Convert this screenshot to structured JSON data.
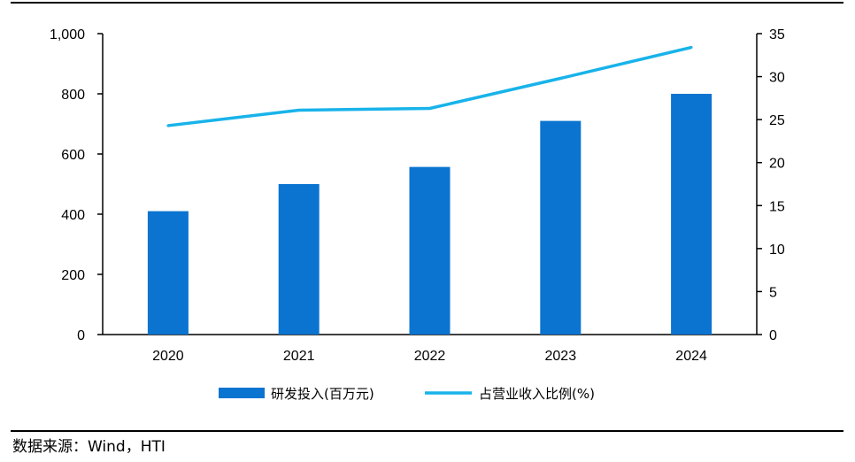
{
  "chart_data": {
    "type": "bar",
    "categories": [
      "2020",
      "2021",
      "2022",
      "2023",
      "2024"
    ],
    "series": [
      {
        "name": "研发投入(百万元)",
        "type": "bar",
        "axis": "left",
        "color": "#0a74d0",
        "values": [
          410,
          500,
          557,
          710,
          800
        ]
      },
      {
        "name": "占营业收入比例(%)",
        "type": "line",
        "axis": "right",
        "color": "#18b3ea",
        "values": [
          24.3,
          26.1,
          26.3,
          29.8,
          33.4
        ]
      }
    ],
    "y_left": {
      "min": 0,
      "max": 1000,
      "ticks": [
        "0",
        "200",
        "400",
        "600",
        "800",
        "1,000"
      ]
    },
    "y_right": {
      "min": 0,
      "max": 35,
      "ticks": [
        "0",
        "5",
        "10",
        "15",
        "20",
        "25",
        "30",
        "35"
      ]
    },
    "legend_position": "bottom",
    "grid": false
  },
  "source": "数据来源：Wind，HTI"
}
